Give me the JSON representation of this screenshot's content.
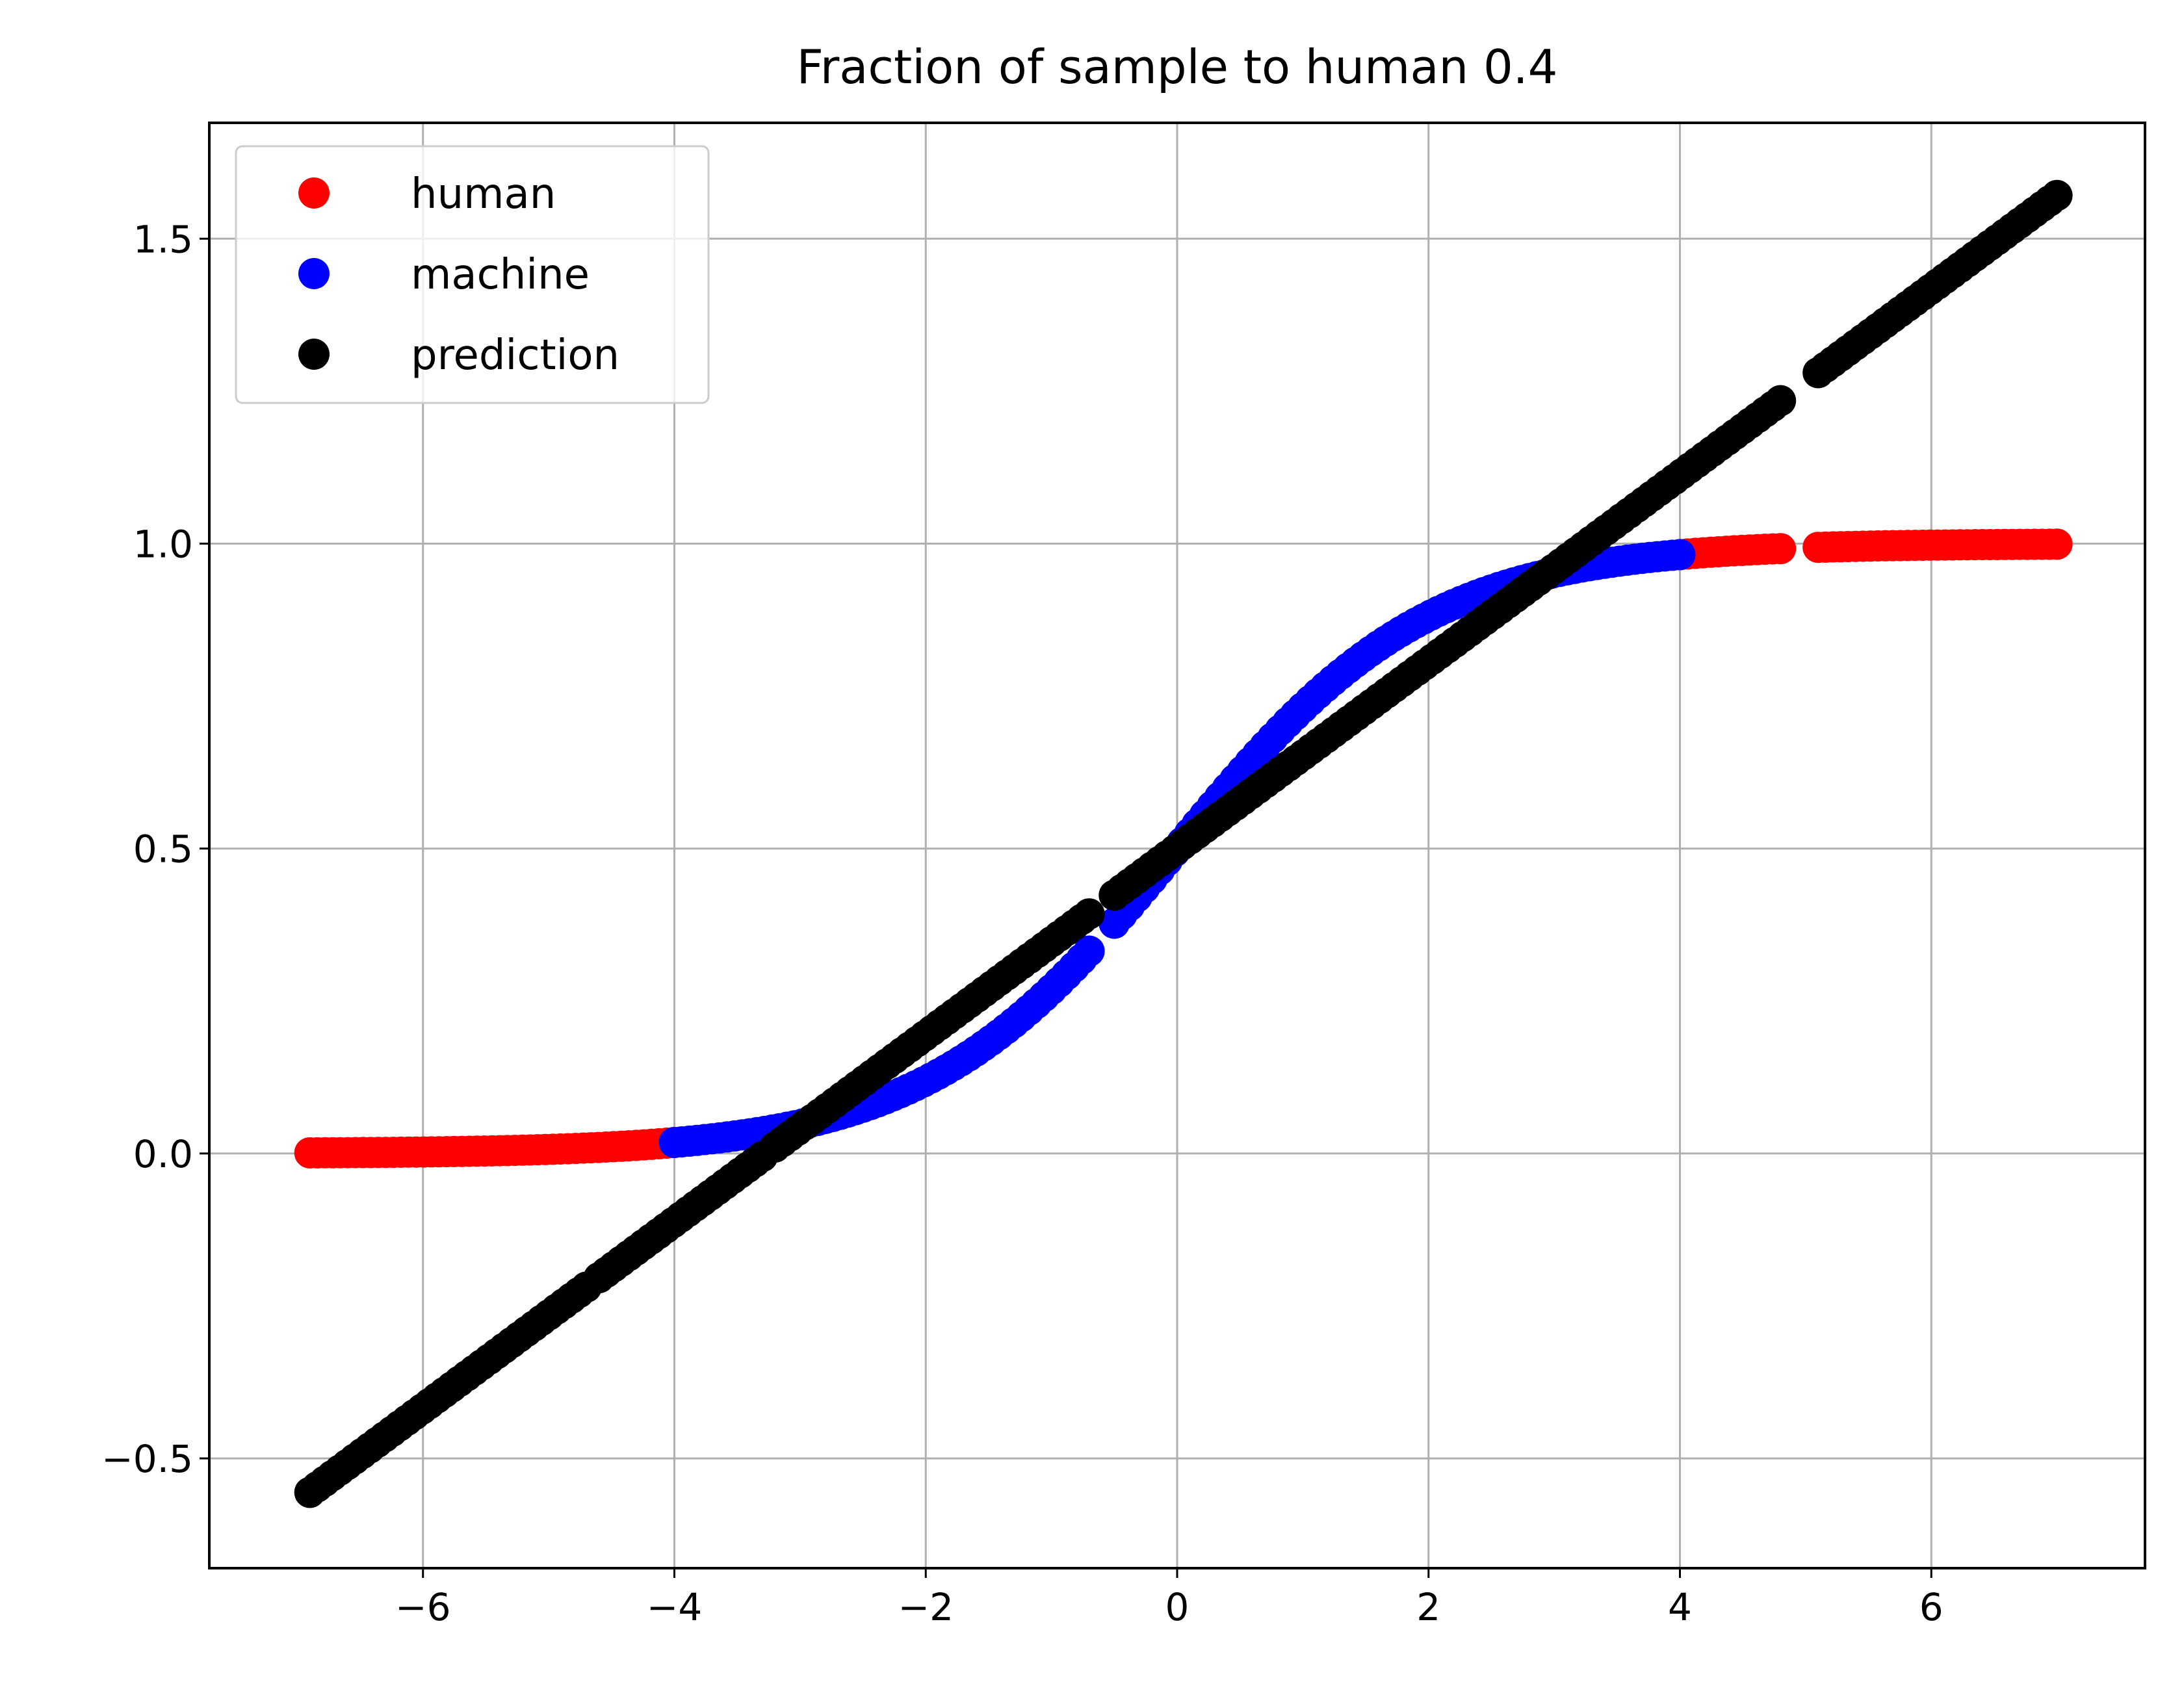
{
  "chart_data": {
    "type": "scatter",
    "title": "Fraction of sample to human 0.4",
    "xlabel": "",
    "ylabel": "",
    "xlim": [
      -7.7,
      7.7
    ],
    "ylim": [
      -0.68,
      1.69
    ],
    "xticks": [
      -6,
      -4,
      -2,
      0,
      2,
      4,
      6
    ],
    "xtick_labels": [
      "−6",
      "−4",
      "−2",
      "0",
      "2",
      "4",
      "6"
    ],
    "yticks": [
      -0.5,
      0.0,
      0.5,
      1.0,
      1.5
    ],
    "ytick_labels": [
      "−0.5",
      "0.0",
      "0.5",
      "1.0",
      "1.5"
    ],
    "grid": true,
    "legend": {
      "position": "top-left"
    },
    "series": [
      {
        "name": "human",
        "color": "#ff0000",
        "function": "logistic",
        "x_min": -6.9,
        "x_max": 7.0,
        "x_ranges": [
          [
            -6.9,
            -4.0
          ],
          [
            4.0,
            4.8
          ],
          [
            5.1,
            7.0
          ]
        ]
      },
      {
        "name": "machine",
        "color": "#0000ff",
        "function": "logistic",
        "x_min": -4.0,
        "x_max": 4.0,
        "x_ranges": [
          [
            -4.0,
            -0.7
          ],
          [
            -0.5,
            4.0
          ]
        ]
      },
      {
        "name": "prediction",
        "color": "#000000",
        "function": "linear",
        "intercept": 0.5,
        "slope": 0.153,
        "x_min": -6.9,
        "x_max": 7.0,
        "x_ranges": [
          [
            -6.9,
            -4.7
          ],
          [
            -4.6,
            -3.3
          ],
          [
            -3.2,
            -0.7
          ],
          [
            -0.5,
            4.8
          ],
          [
            5.1,
            7.0
          ]
        ]
      }
    ]
  }
}
